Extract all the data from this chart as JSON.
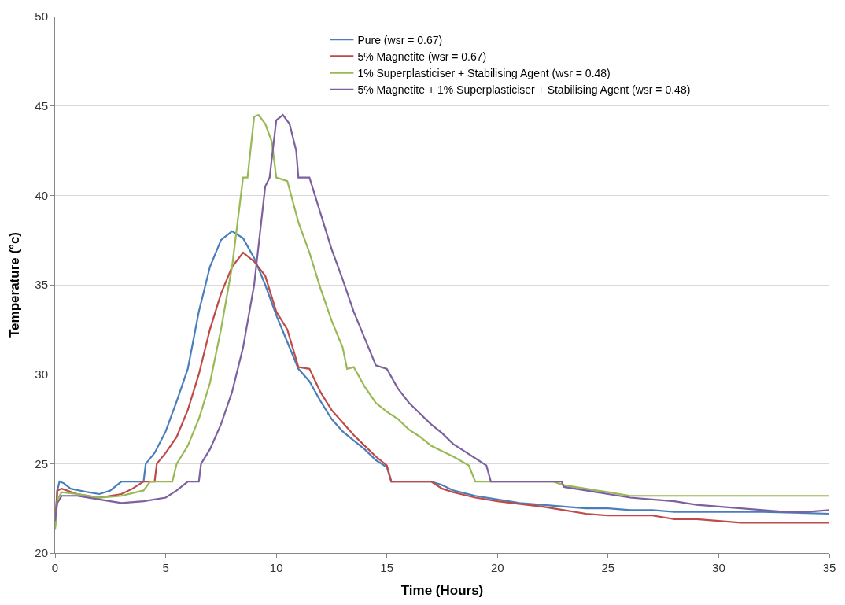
{
  "chart_data": {
    "type": "line",
    "xlabel": "Time (Hours)",
    "ylabel": "Temperature (°c)",
    "xlim": [
      0,
      35
    ],
    "xticks": [
      0,
      5,
      10,
      15,
      20,
      25,
      30,
      35
    ],
    "ylim": [
      20,
      50
    ],
    "yticks": [
      20,
      25,
      30,
      35,
      40,
      45,
      50
    ],
    "grid": "y",
    "legend": "top",
    "marker": "none",
    "line_style": "solid",
    "series": [
      {
        "name": "Pure (wsr = 0.67)",
        "color": "#4a7ebb",
        "x": [
          0,
          0.1,
          0.2,
          0.4,
          0.7,
          1.5,
          2,
          2.5,
          3,
          4,
          4.1,
          4.5,
          5,
          5.5,
          6,
          6.5,
          7,
          7.5,
          8,
          8.5,
          9,
          9.5,
          10,
          10.5,
          11,
          11.5,
          12,
          12.5,
          13,
          13.5,
          14,
          14.5,
          15,
          15.2,
          17,
          17.5,
          18,
          19,
          20,
          21,
          22,
          23,
          24,
          25,
          26,
          27,
          28,
          30,
          32,
          35
        ],
        "values": [
          21.5,
          23.5,
          24,
          23.9,
          23.6,
          23.4,
          23.3,
          23.5,
          24,
          24,
          25,
          25.6,
          26.8,
          28.5,
          30.3,
          33.5,
          36,
          37.5,
          38,
          37.6,
          36.5,
          35,
          33.3,
          31.8,
          30.3,
          29.6,
          28.5,
          27.5,
          26.8,
          26.3,
          25.8,
          25.2,
          24.8,
          24,
          24,
          23.8,
          23.5,
          23.2,
          23,
          22.8,
          22.7,
          22.6,
          22.5,
          22.5,
          22.4,
          22.4,
          22.3,
          22.3,
          22.3,
          22.2
        ]
      },
      {
        "name": "5% Magnetite (wsr = 0.67)",
        "color": "#be4b48",
        "x": [
          0,
          0.1,
          0.3,
          1,
          2,
          3,
          3.5,
          4,
          4.5,
          4.6,
          5,
          5.5,
          6,
          6.5,
          7,
          7.5,
          8,
          8.5,
          9,
          9.5,
          10,
          10.5,
          11,
          11.5,
          12,
          12.5,
          13,
          13.5,
          14,
          14.5,
          15,
          15.2,
          17,
          17.5,
          18,
          19,
          20,
          22,
          23,
          24,
          25,
          27,
          28,
          29,
          30,
          31,
          32,
          35
        ],
        "values": [
          21.5,
          23.5,
          23.6,
          23.3,
          23.1,
          23.3,
          23.6,
          24,
          24,
          25,
          25.6,
          26.5,
          28,
          30,
          32.5,
          34.5,
          36,
          36.8,
          36.3,
          35.5,
          33.5,
          32.5,
          30.4,
          30.3,
          29,
          28,
          27.3,
          26.6,
          26,
          25.4,
          24.9,
          24,
          24,
          23.6,
          23.4,
          23.1,
          22.9,
          22.6,
          22.4,
          22.2,
          22.1,
          22.1,
          21.9,
          21.9,
          21.8,
          21.7,
          21.7,
          21.7
        ]
      },
      {
        "name": "1% Superplasticiser + Stabilising Agent (wsr = 0.48)",
        "color": "#98b954",
        "x": [
          0,
          0.1,
          0.3,
          1,
          2,
          3,
          4,
          4.3,
          5.3,
          5.5,
          6,
          6.5,
          7,
          7.5,
          8,
          8.5,
          8.7,
          9,
          9.2,
          9.5,
          9.8,
          10,
          10.5,
          11,
          11.5,
          12,
          12.5,
          13,
          13.2,
          13.5,
          14,
          14.5,
          15,
          15.5,
          16,
          16.5,
          17,
          17.5,
          18,
          18.7,
          19,
          20,
          22.5,
          23,
          24,
          25,
          26,
          27,
          30,
          35
        ],
        "values": [
          21.3,
          23,
          23.4,
          23.3,
          23.1,
          23.2,
          23.5,
          24,
          24,
          25,
          26,
          27.5,
          29.5,
          32.5,
          36,
          41,
          41,
          44.4,
          44.5,
          44,
          43,
          41,
          40.8,
          38.5,
          36.8,
          34.8,
          33,
          31.5,
          30.3,
          30.4,
          29.3,
          28.4,
          27.9,
          27.5,
          26.9,
          26.5,
          26,
          25.7,
          25.4,
          24.9,
          24,
          24,
          24,
          23.8,
          23.6,
          23.4,
          23.2,
          23.2,
          23.2,
          23.2
        ]
      },
      {
        "name": "5% Magnetite + 1% Superplasticiser + Stabilising Agent (wsr = 0.48)",
        "color": "#7d60a0",
        "x": [
          0,
          0.1,
          0.3,
          1,
          2,
          3,
          4,
          5,
          5.5,
          6,
          6.5,
          6.6,
          7,
          7.5,
          8,
          8.5,
          9,
          9.5,
          9.7,
          10,
          10.3,
          10.6,
          10.9,
          11,
          11.5,
          12,
          12.5,
          13,
          13.5,
          14,
          14.5,
          15,
          15.5,
          16,
          16.5,
          17,
          17.5,
          18,
          18.5,
          19,
          19.5,
          19.7,
          20,
          22.9,
          23,
          24,
          25,
          26,
          27,
          28,
          29,
          30,
          31,
          32,
          33,
          34,
          35
        ],
        "values": [
          21.8,
          22.8,
          23.2,
          23.2,
          23,
          22.8,
          22.9,
          23.1,
          23.5,
          24,
          24,
          25,
          25.8,
          27.2,
          29,
          31.5,
          35,
          40.5,
          41,
          44.2,
          44.5,
          44,
          42.5,
          41,
          41,
          39,
          37,
          35.3,
          33.5,
          32,
          30.5,
          30.3,
          29.2,
          28.4,
          27.8,
          27.2,
          26.7,
          26.1,
          25.7,
          25.3,
          24.9,
          24,
          24,
          24,
          23.7,
          23.5,
          23.3,
          23.1,
          23,
          22.9,
          22.7,
          22.6,
          22.5,
          22.4,
          22.3,
          22.3,
          22.4
        ]
      }
    ]
  }
}
